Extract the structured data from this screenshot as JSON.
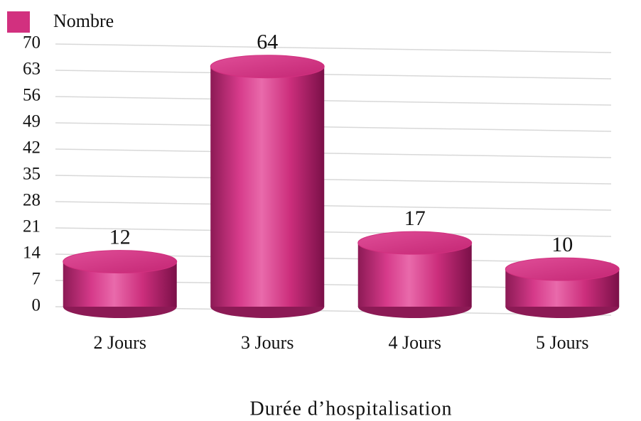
{
  "chart_data": {
    "type": "bar",
    "x_label": "Durée d’hospitalisation",
    "categories": [
      "2 Jours",
      "3 Jours",
      "4 Jours",
      "5 Jours"
    ],
    "series": [
      {
        "name": "Nombre",
        "color": "#d2307f",
        "values": [
          12,
          64,
          17,
          10
        ]
      }
    ],
    "ylim": [
      0,
      70
    ],
    "yticks": [
      0,
      7,
      14,
      21,
      28,
      35,
      42,
      49,
      56,
      63,
      70
    ],
    "grid": true,
    "legend": "top-left"
  }
}
